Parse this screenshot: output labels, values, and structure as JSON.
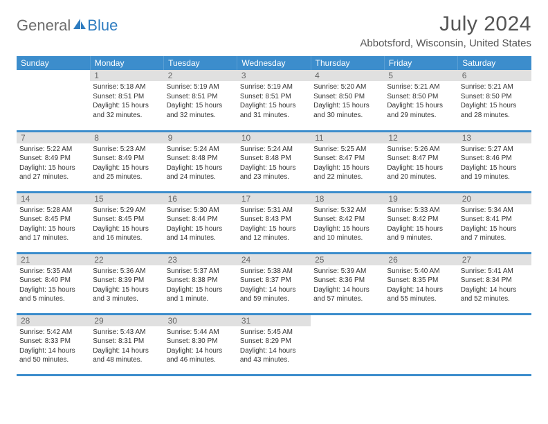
{
  "brand": {
    "word1": "General",
    "word2": "Blue"
  },
  "title": "July 2024",
  "location": "Abbotsford, Wisconsin, United States",
  "colors": {
    "header_bg": "#3c8dcc",
    "header_text": "#ffffff",
    "daybar_bg": "#e0e0e0",
    "daybar_text": "#666666",
    "row_divider": "#3c8dcc",
    "body_text": "#333333",
    "brand_gray": "#6c6c6c",
    "brand_blue": "#2e7cc0"
  },
  "day_headers": [
    "Sunday",
    "Monday",
    "Tuesday",
    "Wednesday",
    "Thursday",
    "Friday",
    "Saturday"
  ],
  "weeks": [
    [
      null,
      {
        "n": "1",
        "sr": "5:18 AM",
        "ss": "8:51 PM",
        "dl": "15 hours and 32 minutes."
      },
      {
        "n": "2",
        "sr": "5:19 AM",
        "ss": "8:51 PM",
        "dl": "15 hours and 32 minutes."
      },
      {
        "n": "3",
        "sr": "5:19 AM",
        "ss": "8:51 PM",
        "dl": "15 hours and 31 minutes."
      },
      {
        "n": "4",
        "sr": "5:20 AM",
        "ss": "8:50 PM",
        "dl": "15 hours and 30 minutes."
      },
      {
        "n": "5",
        "sr": "5:21 AM",
        "ss": "8:50 PM",
        "dl": "15 hours and 29 minutes."
      },
      {
        "n": "6",
        "sr": "5:21 AM",
        "ss": "8:50 PM",
        "dl": "15 hours and 28 minutes."
      }
    ],
    [
      {
        "n": "7",
        "sr": "5:22 AM",
        "ss": "8:49 PM",
        "dl": "15 hours and 27 minutes."
      },
      {
        "n": "8",
        "sr": "5:23 AM",
        "ss": "8:49 PM",
        "dl": "15 hours and 25 minutes."
      },
      {
        "n": "9",
        "sr": "5:24 AM",
        "ss": "8:48 PM",
        "dl": "15 hours and 24 minutes."
      },
      {
        "n": "10",
        "sr": "5:24 AM",
        "ss": "8:48 PM",
        "dl": "15 hours and 23 minutes."
      },
      {
        "n": "11",
        "sr": "5:25 AM",
        "ss": "8:47 PM",
        "dl": "15 hours and 22 minutes."
      },
      {
        "n": "12",
        "sr": "5:26 AM",
        "ss": "8:47 PM",
        "dl": "15 hours and 20 minutes."
      },
      {
        "n": "13",
        "sr": "5:27 AM",
        "ss": "8:46 PM",
        "dl": "15 hours and 19 minutes."
      }
    ],
    [
      {
        "n": "14",
        "sr": "5:28 AM",
        "ss": "8:45 PM",
        "dl": "15 hours and 17 minutes."
      },
      {
        "n": "15",
        "sr": "5:29 AM",
        "ss": "8:45 PM",
        "dl": "15 hours and 16 minutes."
      },
      {
        "n": "16",
        "sr": "5:30 AM",
        "ss": "8:44 PM",
        "dl": "15 hours and 14 minutes."
      },
      {
        "n": "17",
        "sr": "5:31 AM",
        "ss": "8:43 PM",
        "dl": "15 hours and 12 minutes."
      },
      {
        "n": "18",
        "sr": "5:32 AM",
        "ss": "8:42 PM",
        "dl": "15 hours and 10 minutes."
      },
      {
        "n": "19",
        "sr": "5:33 AM",
        "ss": "8:42 PM",
        "dl": "15 hours and 9 minutes."
      },
      {
        "n": "20",
        "sr": "5:34 AM",
        "ss": "8:41 PM",
        "dl": "15 hours and 7 minutes."
      }
    ],
    [
      {
        "n": "21",
        "sr": "5:35 AM",
        "ss": "8:40 PM",
        "dl": "15 hours and 5 minutes."
      },
      {
        "n": "22",
        "sr": "5:36 AM",
        "ss": "8:39 PM",
        "dl": "15 hours and 3 minutes."
      },
      {
        "n": "23",
        "sr": "5:37 AM",
        "ss": "8:38 PM",
        "dl": "15 hours and 1 minute."
      },
      {
        "n": "24",
        "sr": "5:38 AM",
        "ss": "8:37 PM",
        "dl": "14 hours and 59 minutes."
      },
      {
        "n": "25",
        "sr": "5:39 AM",
        "ss": "8:36 PM",
        "dl": "14 hours and 57 minutes."
      },
      {
        "n": "26",
        "sr": "5:40 AM",
        "ss": "8:35 PM",
        "dl": "14 hours and 55 minutes."
      },
      {
        "n": "27",
        "sr": "5:41 AM",
        "ss": "8:34 PM",
        "dl": "14 hours and 52 minutes."
      }
    ],
    [
      {
        "n": "28",
        "sr": "5:42 AM",
        "ss": "8:33 PM",
        "dl": "14 hours and 50 minutes."
      },
      {
        "n": "29",
        "sr": "5:43 AM",
        "ss": "8:31 PM",
        "dl": "14 hours and 48 minutes."
      },
      {
        "n": "30",
        "sr": "5:44 AM",
        "ss": "8:30 PM",
        "dl": "14 hours and 46 minutes."
      },
      {
        "n": "31",
        "sr": "5:45 AM",
        "ss": "8:29 PM",
        "dl": "14 hours and 43 minutes."
      },
      null,
      null,
      null
    ]
  ],
  "labels": {
    "sunrise": "Sunrise:",
    "sunset": "Sunset:",
    "daylight": "Daylight:"
  }
}
